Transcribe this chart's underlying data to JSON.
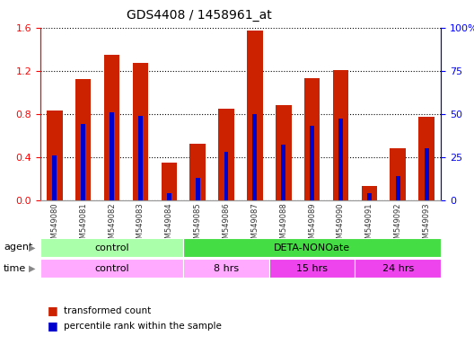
{
  "title": "GDS4408 / 1458961_at",
  "samples": [
    "GSM549080",
    "GSM549081",
    "GSM549082",
    "GSM549083",
    "GSM549084",
    "GSM549085",
    "GSM549086",
    "GSM549087",
    "GSM549088",
    "GSM549089",
    "GSM549090",
    "GSM549091",
    "GSM549092",
    "GSM549093"
  ],
  "red_values": [
    0.83,
    1.12,
    1.35,
    1.27,
    0.35,
    0.52,
    0.85,
    1.57,
    0.88,
    1.13,
    1.21,
    0.13,
    0.48,
    0.77
  ],
  "blue_pct": [
    26,
    44,
    51,
    49,
    4,
    13,
    28,
    50,
    32,
    43,
    47,
    4,
    14,
    30
  ],
  "ylim_left": [
    0,
    1.6
  ],
  "ylim_right": [
    0,
    100
  ],
  "yticks_left": [
    0,
    0.4,
    0.8,
    1.2,
    1.6
  ],
  "yticks_right": [
    0,
    25,
    50,
    75,
    100
  ],
  "agent_groups": [
    {
      "label": "control",
      "start": 0,
      "end": 5,
      "color": "#aaffaa"
    },
    {
      "label": "DETA-NONOate",
      "start": 5,
      "end": 14,
      "color": "#44dd44"
    }
  ],
  "time_groups": [
    {
      "label": "control",
      "start": 0,
      "end": 5,
      "color": "#ffaaff"
    },
    {
      "label": "8 hrs",
      "start": 5,
      "end": 8,
      "color": "#ffaaff"
    },
    {
      "label": "15 hrs",
      "start": 8,
      "end": 11,
      "color": "#ee44ee"
    },
    {
      "label": "24 hrs",
      "start": 11,
      "end": 14,
      "color": "#ee44ee"
    }
  ],
  "bar_color_red": "#cc2200",
  "bar_color_blue": "#0000cc",
  "bar_width": 0.55,
  "background_color": "#ffffff",
  "legend_red": "transformed count",
  "legend_blue": "percentile rank within the sample"
}
